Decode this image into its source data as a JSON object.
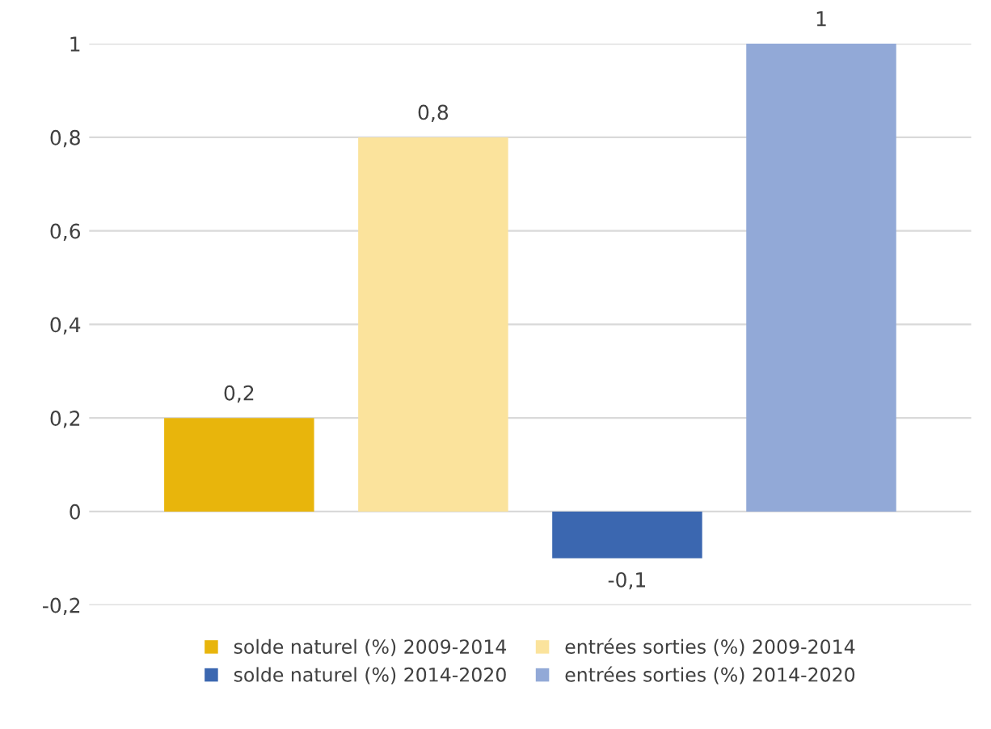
{
  "chart_data": {
    "type": "bar",
    "categories": [
      null
    ],
    "series": [
      {
        "name": "solde naturel (%) 2009-2014",
        "color": "#e8b50c",
        "values": [
          0.2
        ],
        "value_labels": [
          "0,2"
        ]
      },
      {
        "name": "entrées sorties (%) 2009-2014",
        "color": "#fbe39c",
        "values": [
          0.8
        ],
        "value_labels": [
          "0,8"
        ]
      },
      {
        "name": "solde naturel (%) 2014-2020",
        "color": "#3b67b0",
        "values": [
          -0.1
        ],
        "value_labels": [
          "-0,1"
        ]
      },
      {
        "name": "entrées sorties (%) 2014-2020",
        "color": "#92a9d7",
        "values": [
          1
        ],
        "value_labels": [
          "1"
        ]
      }
    ],
    "ylim": [
      -0.2,
      1
    ],
    "yticks": [
      {
        "value": -0.2,
        "label": "-0,2"
      },
      0,
      {
        "value": 0.2,
        "label": "0,2"
      },
      {
        "value": 0.4,
        "label": "0,4"
      },
      {
        "value": 0.6,
        "label": "0,6"
      },
      {
        "value": 0.8,
        "label": "0,8"
      },
      1
    ],
    "grid": "y",
    "legend": "bottom"
  }
}
